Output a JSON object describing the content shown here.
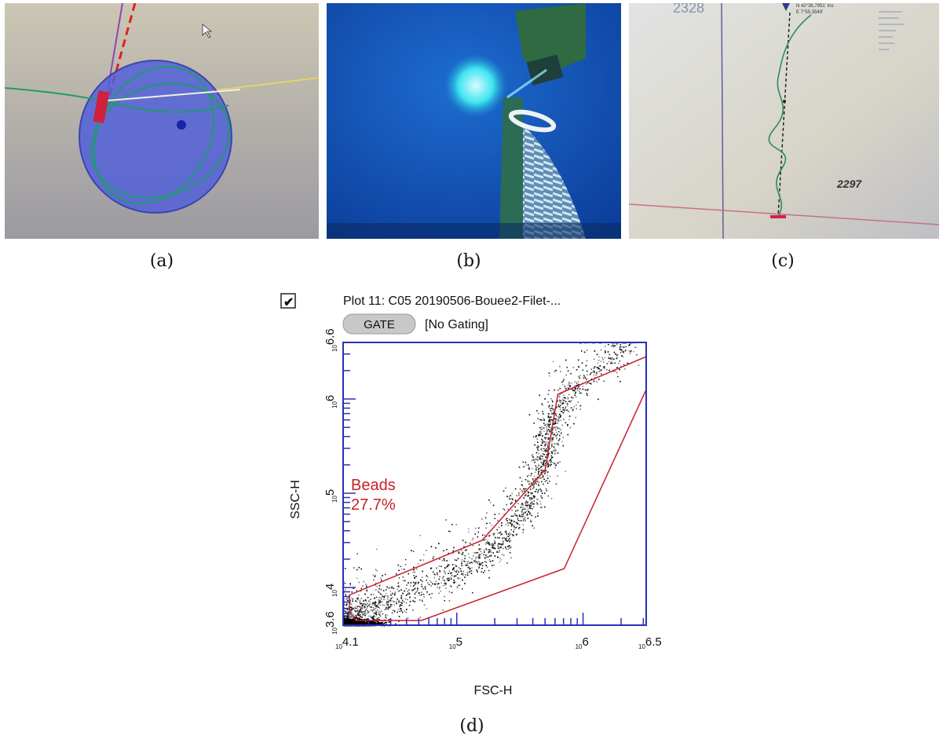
{
  "captions": {
    "a": "(a)",
    "b": "(b)",
    "c": "(c)",
    "d": "(d)"
  },
  "panel_c": {
    "depth_top": "2328",
    "depth_mid": "2297",
    "coord_n": "N 42°36,7951' Ins",
    "coord_e": "E 7°55,3549'"
  },
  "panel_d": {
    "plot_title": "Plot 11: C05 20190506-Bouee2-Filet-...",
    "gate_label": "GATE",
    "gate_value": "[No Gating]",
    "region_name": "Beads",
    "region_percent": "27.7%",
    "x_axis_label": "FSC-H",
    "y_axis_label": "SSC-H",
    "x_ticks": [
      "4.1",
      "5",
      "6",
      "6.5"
    ],
    "y_ticks": [
      "3.6",
      "4",
      "5",
      "6",
      "6.6"
    ],
    "tick_base": "10",
    "checkbox_mark": "✔"
  },
  "chart_data": {
    "type": "scatter",
    "title": "Plot 11: C05 20190506-Bouee2-Filet-...",
    "xlabel": "FSC-H",
    "ylabel": "SSC-H",
    "x_scale": "log",
    "y_scale": "log",
    "xlim_log10": [
      4.1,
      6.5
    ],
    "ylim_log10": [
      3.6,
      6.6
    ],
    "series": [
      {
        "name": "Beads",
        "percent": "27.7%"
      }
    ],
    "gate_polygon_log10": [
      [
        4.15,
        3.74
      ],
      [
        4.2,
        3.65
      ],
      [
        4.72,
        3.65
      ],
      [
        5.85,
        4.2
      ],
      [
        6.5,
        6.1
      ],
      [
        6.5,
        6.45
      ],
      [
        5.8,
        6.05
      ],
      [
        5.73,
        5.5
      ],
      [
        5.7,
        5.25
      ],
      [
        5.6,
        5.1
      ],
      [
        5.2,
        4.5
      ],
      [
        4.15,
        3.92
      ]
    ],
    "density_ridge_log10": [
      [
        4.1,
        3.7
      ],
      [
        4.5,
        3.85
      ],
      [
        5.0,
        4.15
      ],
      [
        5.3,
        4.4
      ],
      [
        5.55,
        4.8
      ],
      [
        5.68,
        5.25
      ],
      [
        5.73,
        5.55
      ],
      [
        5.75,
        5.8
      ],
      [
        6.0,
        6.2
      ],
      [
        6.4,
        6.6
      ]
    ],
    "grid": false,
    "legend": "none"
  }
}
